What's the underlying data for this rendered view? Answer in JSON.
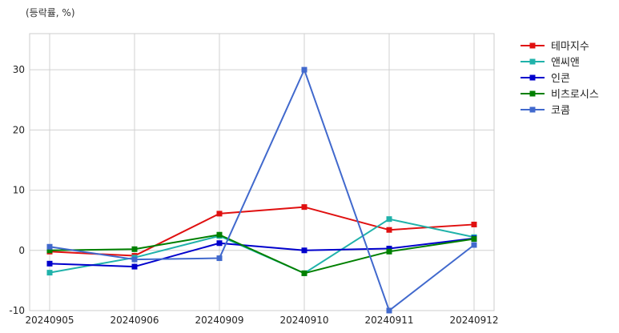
{
  "chart_data": {
    "type": "line",
    "unit_label": "(등락률, %)",
    "categories": [
      "20240905",
      "20240906",
      "20240909",
      "20240910",
      "20240911",
      "20240912"
    ],
    "ylim": [
      -10,
      36
    ],
    "yticks": [
      -10,
      0,
      10,
      20,
      30
    ],
    "grid": true,
    "legend_position": "right-top",
    "series": [
      {
        "name": "테마지수",
        "color": "#e01010",
        "values": [
          -0.2,
          -0.9,
          6.1,
          7.2,
          3.4,
          4.3
        ]
      },
      {
        "name": "앤씨앤",
        "color": "#20b2aa",
        "values": [
          -3.7,
          -1.2,
          2.4,
          -3.8,
          5.2,
          2.2
        ]
      },
      {
        "name": "인콘",
        "color": "#0000cc",
        "values": [
          -2.2,
          -2.7,
          1.2,
          0.0,
          0.3,
          2.0
        ]
      },
      {
        "name": "비츠로시스",
        "color": "#008000",
        "values": [
          0.0,
          0.2,
          2.6,
          -3.8,
          -0.2,
          1.9
        ]
      },
      {
        "name": "코콤",
        "color": "#4169cd",
        "values": [
          0.6,
          -1.5,
          -1.3,
          30.0,
          -10.0,
          0.9
        ]
      }
    ]
  }
}
